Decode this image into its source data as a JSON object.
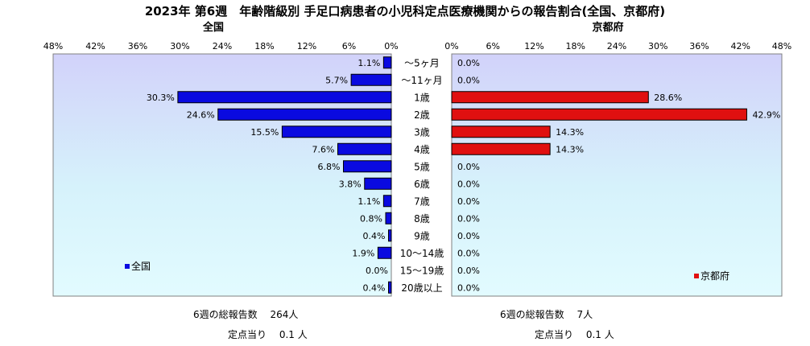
{
  "title": "2023年 第6週　年齢階級別 手足口病患者の小児科定点医療機関からの報告割合(全国、京都府)",
  "chart_data": {
    "type": "bar",
    "categories": [
      "～5ヶ月",
      "～11ヶ月",
      "1歳",
      "2歳",
      "3歳",
      "4歳",
      "5歳",
      "6歳",
      "7歳",
      "8歳",
      "9歳",
      "10～14歳",
      "15～19歳",
      "20歳以上"
    ],
    "xlim": [
      0,
      48
    ],
    "ticks": [
      "0%",
      "6%",
      "12%",
      "18%",
      "24%",
      "30%",
      "36%",
      "42%",
      "48%"
    ],
    "left_ticks": [
      "48%",
      "42%",
      "36%",
      "30%",
      "24%",
      "18%",
      "12%",
      "6%",
      "0%"
    ],
    "right_ticks": [
      "0%",
      "6%",
      "12%",
      "18%",
      "24%",
      "30%",
      "36%",
      "42%",
      "48%"
    ],
    "series": [
      {
        "name": "全国",
        "subtitle": "全国",
        "color": "#0a0ae0",
        "values": [
          1.1,
          5.7,
          30.3,
          24.6,
          15.5,
          7.6,
          6.8,
          3.8,
          1.1,
          0.8,
          0.4,
          1.9,
          0.0,
          0.4
        ],
        "labels": [
          "1.1%",
          "5.7%",
          "30.3%",
          "24.6%",
          "15.5%",
          "7.6%",
          "6.8%",
          "3.8%",
          "1.1%",
          "0.8%",
          "0.4%",
          "1.9%",
          "0.0%",
          "0.4%"
        ],
        "legend": "全国",
        "footer_total": "6週の総報告数　 264人",
        "footer_per": "定点当り　 0.1 人"
      },
      {
        "name": "京都府",
        "subtitle": "京都府",
        "color": "#e01010",
        "values": [
          0.0,
          0.0,
          28.6,
          42.9,
          14.3,
          14.3,
          0.0,
          0.0,
          0.0,
          0.0,
          0.0,
          0.0,
          0.0,
          0.0
        ],
        "labels": [
          "0.0%",
          "0.0%",
          "28.6%",
          "42.9%",
          "14.3%",
          "14.3%",
          "0.0%",
          "0.0%",
          "0.0%",
          "0.0%",
          "0.0%",
          "0.0%",
          "0.0%",
          "0.0%"
        ],
        "legend": "京都府",
        "footer_total": "6週の総報告数　 7人",
        "footer_per": "定点当り　 0.1 人"
      }
    ]
  }
}
